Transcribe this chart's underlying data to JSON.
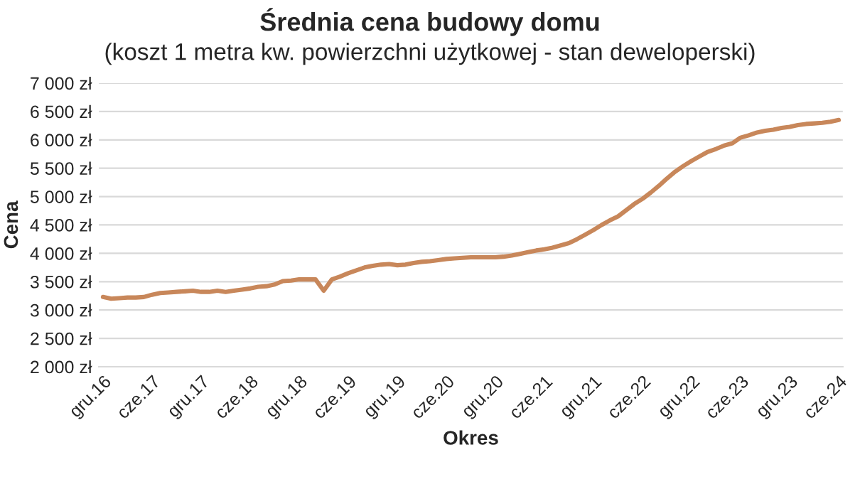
{
  "chart_data": {
    "type": "line",
    "title": "Średnia cena budowy domu",
    "subtitle": "(koszt 1 metra kw. powierzchni użytkowej - stan deweloperski)",
    "xlabel": "Okres",
    "ylabel": "Cena",
    "categories": [
      "gru.16",
      null,
      null,
      null,
      null,
      null,
      "cze.17",
      null,
      null,
      null,
      null,
      null,
      "gru.17",
      null,
      null,
      null,
      null,
      null,
      "cze.18",
      null,
      null,
      null,
      null,
      null,
      "gru.18",
      null,
      null,
      null,
      null,
      null,
      "cze.19",
      null,
      null,
      null,
      null,
      null,
      "gru.19",
      null,
      null,
      null,
      null,
      null,
      "cze.20",
      null,
      null,
      null,
      null,
      null,
      "gru.20",
      null,
      null,
      null,
      null,
      null,
      "cze.21",
      null,
      null,
      null,
      null,
      null,
      "gru.21",
      null,
      null,
      null,
      null,
      null,
      "cze.22",
      null,
      null,
      null,
      null,
      null,
      "gru.22",
      null,
      null,
      null,
      null,
      null,
      "cze.23",
      null,
      null,
      null,
      null,
      null,
      "gru.23",
      null,
      null,
      null,
      null,
      null,
      "cze.24"
    ],
    "series": [
      {
        "color": "#c8875a",
        "values": [
          3230,
          3200,
          3210,
          3220,
          3220,
          3230,
          3270,
          3300,
          3310,
          3320,
          3330,
          3340,
          3320,
          3320,
          3340,
          3320,
          3340,
          3360,
          3380,
          3410,
          3420,
          3450,
          3510,
          3520,
          3540,
          3540,
          3540,
          3340,
          3540,
          3590,
          3650,
          3700,
          3750,
          3780,
          3800,
          3810,
          3790,
          3800,
          3830,
          3850,
          3860,
          3880,
          3900,
          3910,
          3920,
          3930,
          3930,
          3930,
          3930,
          3940,
          3960,
          3990,
          4020,
          4050,
          4070,
          4100,
          4140,
          4180,
          4250,
          4330,
          4410,
          4500,
          4580,
          4650,
          4760,
          4870,
          4960,
          5070,
          5190,
          5320,
          5440,
          5540,
          5630,
          5710,
          5790,
          5840,
          5900,
          5940,
          6040,
          6080,
          6130,
          6160,
          6180,
          6210,
          6230,
          6260,
          6280,
          6290,
          6300,
          6320,
          6350
        ]
      }
    ],
    "ylim": [
      2000,
      7000
    ],
    "yticks": [
      {
        "value": 2000,
        "label": "2 000 zł"
      },
      {
        "value": 2500,
        "label": "2 500 zł"
      },
      {
        "value": 3000,
        "label": "3 000 zł"
      },
      {
        "value": 3500,
        "label": "3 500 zł"
      },
      {
        "value": 4000,
        "label": "4 000 zł"
      },
      {
        "value": 4500,
        "label": "4 500 zł"
      },
      {
        "value": 5000,
        "label": "5 000 zł"
      },
      {
        "value": 5500,
        "label": "5 500 zł"
      },
      {
        "value": 6000,
        "label": "6 000 zł"
      },
      {
        "value": 6500,
        "label": "6 500 zł"
      },
      {
        "value": 7000,
        "label": "7 000 zł"
      }
    ],
    "grid": "y",
    "marker": "none",
    "line_style": "solid"
  }
}
